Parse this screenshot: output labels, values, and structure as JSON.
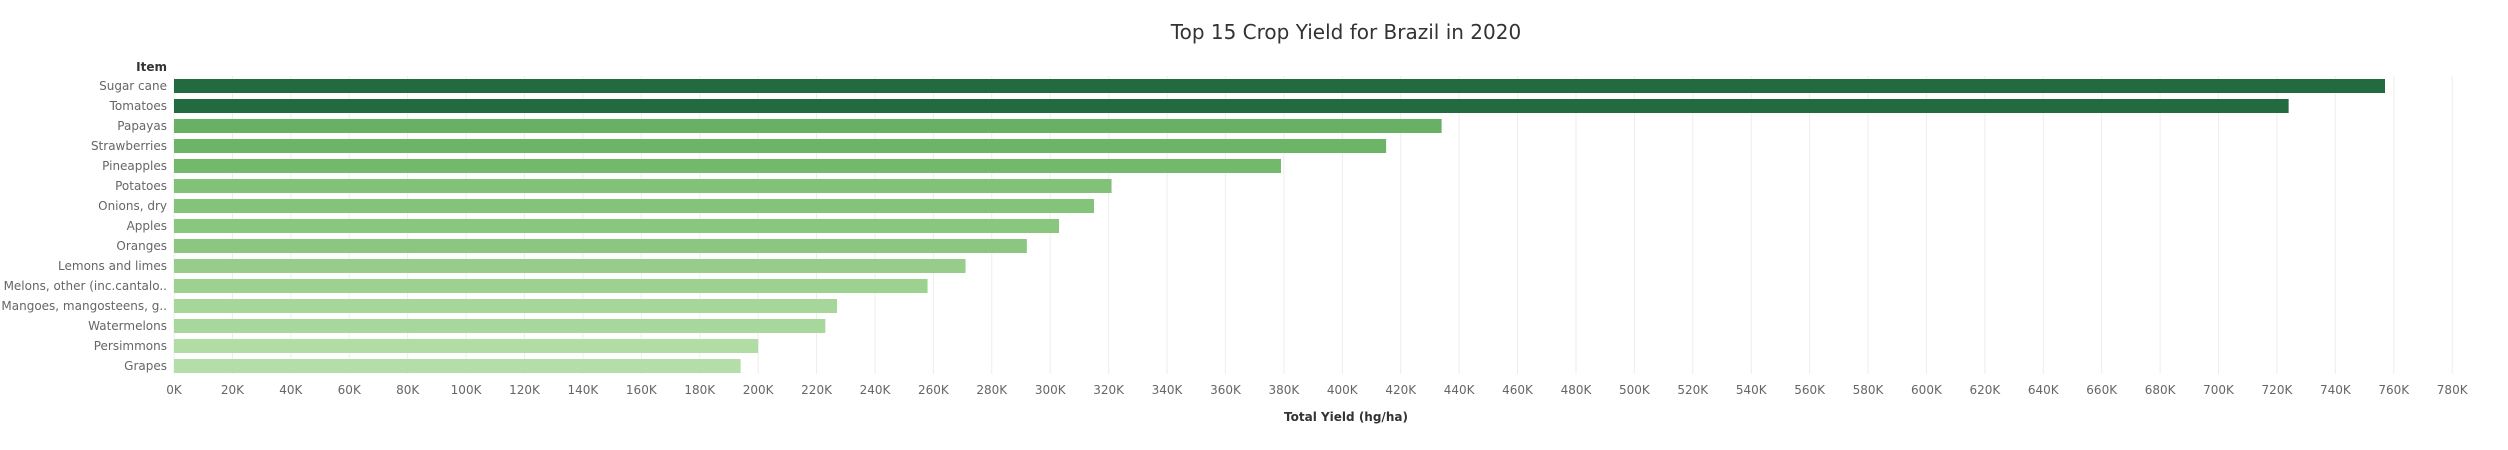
{
  "chart_data": {
    "type": "bar",
    "orientation": "horizontal",
    "title": "Top 15 Crop Yield for Brazil in 2020",
    "ylabel": "Item",
    "xlabel": "Total Yield (hg/ha)",
    "xlim": [
      0,
      795000
    ],
    "grid": true,
    "tick_values": [
      0,
      20000,
      40000,
      60000,
      80000,
      100000,
      120000,
      140000,
      160000,
      180000,
      200000,
      220000,
      240000,
      260000,
      280000,
      300000,
      320000,
      340000,
      360000,
      380000,
      400000,
      420000,
      440000,
      460000,
      480000,
      500000,
      520000,
      540000,
      560000,
      580000,
      600000,
      620000,
      640000,
      660000,
      680000,
      700000,
      720000,
      740000,
      760000,
      780000
    ],
    "tick_labels": [
      "0K",
      "20K",
      "40K",
      "60K",
      "80K",
      "100K",
      "120K",
      "140K",
      "160K",
      "180K",
      "200K",
      "220K",
      "240K",
      "260K",
      "280K",
      "300K",
      "320K",
      "340K",
      "360K",
      "380K",
      "400K",
      "420K",
      "440K",
      "460K",
      "480K",
      "500K",
      "520K",
      "540K",
      "560K",
      "580K",
      "600K",
      "620K",
      "640K",
      "660K",
      "680K",
      "700K",
      "720K",
      "740K",
      "760K",
      "780K"
    ],
    "categories": [
      "Sugar cane",
      "Tomatoes",
      "Papayas",
      "Strawberries",
      "Pineapples",
      "Potatoes",
      "Onions, dry",
      "Apples",
      "Oranges",
      "Lemons and limes",
      "Melons, other (inc.cantalo..",
      "Mangoes, mangosteens, g..",
      "Watermelons",
      "Persimmons",
      "Grapes"
    ],
    "values": [
      757000,
      724000,
      434000,
      415000,
      379000,
      321000,
      315000,
      303000,
      292000,
      271000,
      258000,
      227000,
      223000,
      200000,
      194000
    ],
    "colors": [
      "#236b3e",
      "#236b3e",
      "#68b164",
      "#6cb466",
      "#72b96b",
      "#82c278",
      "#84c37a",
      "#89c67e",
      "#8bc780",
      "#97cd8b",
      "#9dd190",
      "#a6d699",
      "#a8d79b",
      "#b1dca4",
      "#b4dea7"
    ]
  }
}
